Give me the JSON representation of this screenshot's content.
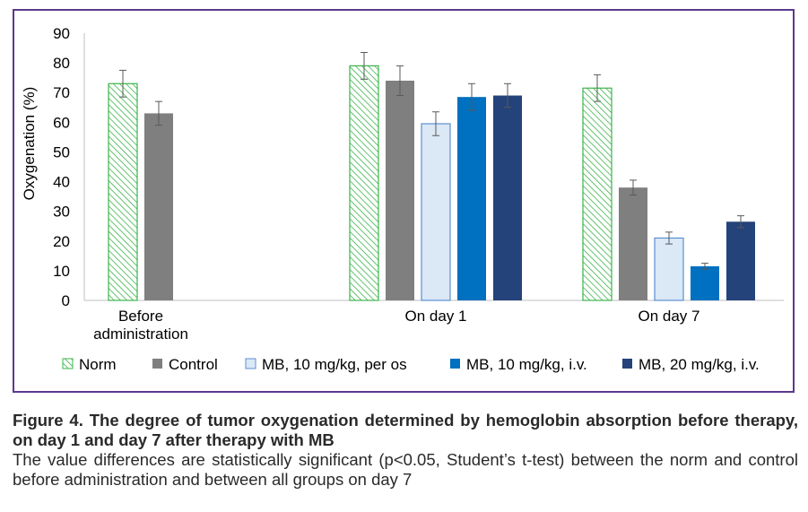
{
  "chart_data": {
    "type": "bar",
    "ylabel": "Oxygenation (%)",
    "xlabel": "",
    "ylim": [
      0,
      90
    ],
    "yticks": [
      0,
      10,
      20,
      30,
      40,
      50,
      60,
      70,
      80,
      90
    ],
    "grid": false,
    "legend_position": "bottom",
    "categories": [
      "Before\nadministration",
      "On day 1",
      "On day 7"
    ],
    "series": [
      {
        "name": "Norm",
        "color": "#3cb44b",
        "pattern": "hatched",
        "values": [
          73,
          79,
          71.5
        ],
        "errors": [
          4.5,
          4.5,
          4.5
        ]
      },
      {
        "name": "Control",
        "color": "#7f7f7f",
        "values": [
          63,
          74,
          38
        ],
        "errors": [
          4,
          5,
          2.5
        ]
      },
      {
        "name": "MB, 10 mg/kg, per os",
        "color": "#dbe8f6",
        "stroke": "#5b8fd1",
        "values": [
          null,
          59.5,
          21
        ],
        "errors": [
          null,
          4,
          2
        ]
      },
      {
        "name": "MB, 10 mg/kg, i.v.",
        "color": "#0070c0",
        "values": [
          null,
          68.5,
          11.5
        ],
        "errors": [
          null,
          4.5,
          1
        ]
      },
      {
        "name": "MB, 20 mg/kg, i.v.",
        "color": "#24437a",
        "values": [
          null,
          69,
          26.5
        ],
        "errors": [
          null,
          4,
          2
        ]
      }
    ]
  },
  "caption": {
    "title": "Figure 4. The degree of tumor oxygenation determined by hemoglobin absorption before therapy, on day 1 and day 7 after therapy with MB",
    "note": "The value differences are statistically significant (p<0.05, Student’s t-test) between the norm and control before administration and between all groups on day 7"
  }
}
